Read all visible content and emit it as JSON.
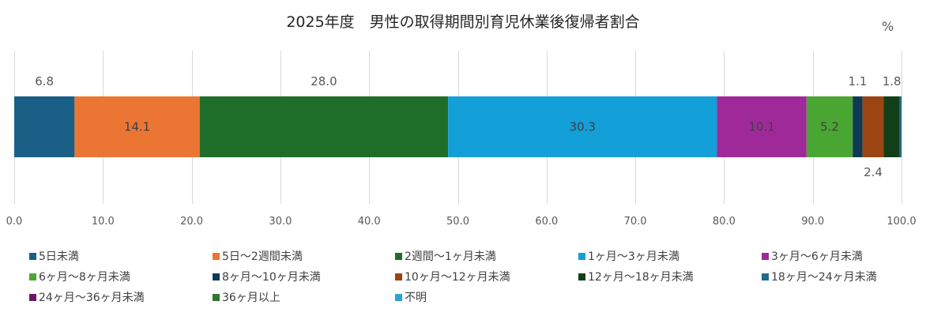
{
  "chart_data": {
    "type": "bar",
    "orientation": "horizontal-stacked",
    "title": "2025年度　男性の取得期間別育児休業後復帰者割合",
    "unit": "%",
    "xlim": [
      0,
      100
    ],
    "x_ticks": [
      "0.0",
      "10.0",
      "20.0",
      "30.0",
      "40.0",
      "50.0",
      "60.0",
      "70.0",
      "80.0",
      "90.0",
      "100.0"
    ],
    "grid": true,
    "legend_position": "bottom",
    "series": [
      {
        "name": "5日未満",
        "value": 6.8,
        "label": "6.8",
        "color": "#1a5f86"
      },
      {
        "name": "5日～2週間未満",
        "value": 14.1,
        "label": "14.1",
        "color": "#eb7633"
      },
      {
        "name": "2週間～1ヶ月未満",
        "value": 28.0,
        "label": "28.0",
        "color": "#1e6e2a"
      },
      {
        "name": "1ヶ月～3ヶ月未満",
        "value": 30.3,
        "label": "30.3",
        "color": "#139fd8"
      },
      {
        "name": "3ヶ月～6ヶ月未満",
        "value": 10.1,
        "label": "10.1",
        "color": "#a0299a"
      },
      {
        "name": "6ヶ月～8ヶ月未満",
        "value": 5.2,
        "label": "5.2",
        "color": "#4aa632"
      },
      {
        "name": "8ヶ月～10ヶ月未満",
        "value": 1.1,
        "label": "1.1",
        "color": "#0e3a56"
      },
      {
        "name": "10ヶ月～12ヶ月未満",
        "value": 2.4,
        "label": "2.4",
        "color": "#9b4513"
      },
      {
        "name": "12ヶ月～18ヶ月未満",
        "value": 1.8,
        "label": "1.8",
        "color": "#123e18"
      },
      {
        "name": "18ヶ月～24ヶ月未満",
        "value": 0.2,
        "label": "",
        "color": "#1e6b8b"
      },
      {
        "name": "24ヶ月～36ヶ月未満",
        "value": 0,
        "label": "",
        "color": "#6a1a63"
      },
      {
        "name": "36ヶ月以上",
        "value": 0,
        "label": "",
        "color": "#2f7a2e"
      },
      {
        "name": "不明",
        "value": 0,
        "label": "",
        "color": "#2fa0d6"
      }
    ]
  }
}
